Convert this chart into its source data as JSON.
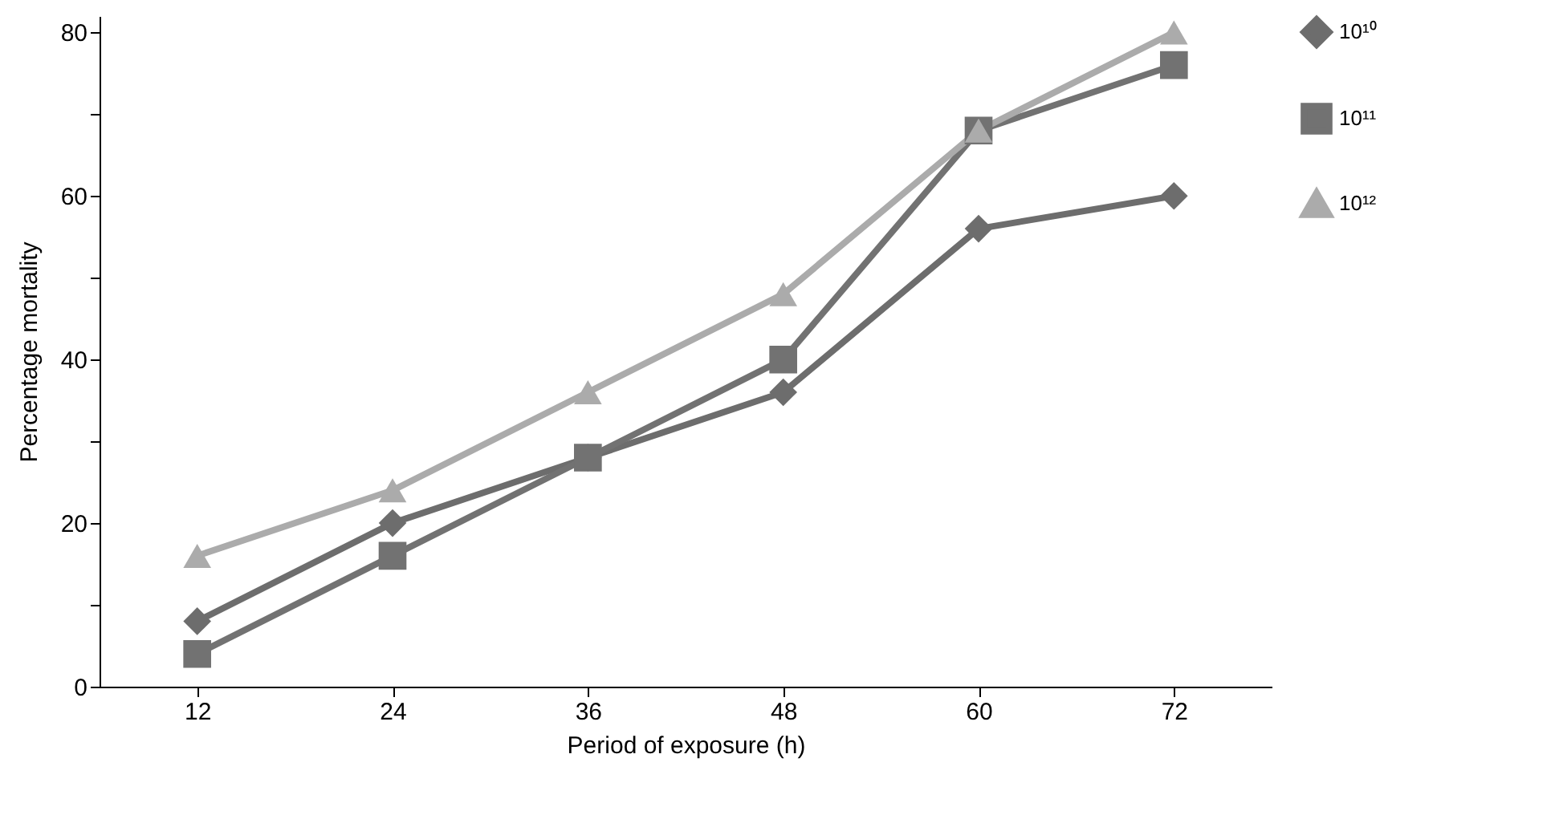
{
  "chart_data": {
    "type": "line",
    "xlabel": "Period of exposure (h)",
    "ylabel": "Percentage mortality",
    "categories": [
      "12",
      "24",
      "36",
      "48",
      "60",
      "72"
    ],
    "ylim": [
      0,
      82
    ],
    "yticks": [
      0,
      {
        "value": 10,
        "label": null
      },
      20,
      {
        "value": 30,
        "label": null
      },
      40,
      {
        "value": 50,
        "label": null
      },
      60,
      {
        "value": 70,
        "label": null
      },
      80
    ],
    "grid": false,
    "legend": "right",
    "line_style": "solid",
    "series": [
      {
        "name": "10¹⁰",
        "color": "#6d6d6d",
        "marker": "diamond",
        "values": [
          8,
          20,
          28,
          36,
          56,
          60
        ]
      },
      {
        "name": "10¹¹",
        "color": "#727272",
        "marker": "square",
        "values": [
          4,
          16,
          28,
          40,
          68,
          76
        ]
      },
      {
        "name": "10¹²",
        "color": "#ababab",
        "marker": "triangle",
        "values": [
          16,
          24,
          36,
          48,
          68,
          80
        ]
      }
    ]
  }
}
